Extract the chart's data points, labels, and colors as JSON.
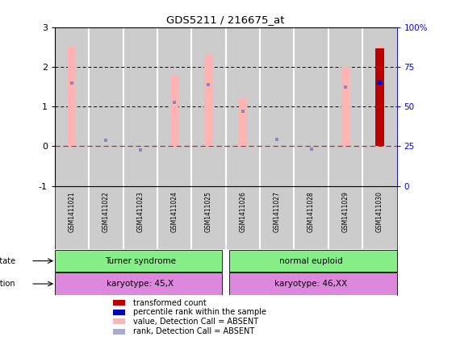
{
  "title": "GDS5211 / 216675_at",
  "samples": [
    "GSM1411021",
    "GSM1411022",
    "GSM1411023",
    "GSM1411024",
    "GSM1411025",
    "GSM1411026",
    "GSM1411027",
    "GSM1411028",
    "GSM1411029",
    "GSM1411030"
  ],
  "pink_bar_values": [
    2.5,
    0.0,
    0.0,
    1.8,
    2.3,
    1.2,
    0.0,
    0.0,
    2.0,
    2.5
  ],
  "blue_dot_values": [
    1.6,
    0.15,
    -0.1,
    1.1,
    1.55,
    0.88,
    0.18,
    -0.08,
    1.5,
    1.62
  ],
  "red_bar_values": [
    0.0,
    0.0,
    0.0,
    0.0,
    0.0,
    0.0,
    0.0,
    0.0,
    0.0,
    2.47
  ],
  "blue_square_value": 1.62,
  "blue_square_index": 9,
  "ylim": [
    -1,
    3
  ],
  "yticks": [
    -1,
    0,
    1,
    2,
    3
  ],
  "right_yticks_pct": [
    0,
    25,
    50,
    75,
    100
  ],
  "right_ytick_labels": [
    "0",
    "25",
    "50",
    "75",
    "100%"
  ],
  "hlines": [
    1.0,
    2.0
  ],
  "zero_line_color": "#cc2222",
  "disease_state_labels": [
    "Turner syndrome",
    "normal euploid"
  ],
  "disease_state_color": "#88ee88",
  "genotype_labels": [
    "karyotype: 45,X",
    "karyotype: 46,XX"
  ],
  "genotype_color": "#dd88dd",
  "background_color": "#ffffff",
  "col_bg_color": "#cccccc",
  "col_divider_color": "#ffffff",
  "pink_color": "#ffb3b3",
  "blue_rank_color": "#8888bb",
  "red_color": "#bb0000",
  "dark_blue_color": "#0000bb",
  "legend_items": [
    {
      "color": "#bb0000",
      "label": "transformed count"
    },
    {
      "color": "#0000bb",
      "label": "percentile rank within the sample"
    },
    {
      "color": "#ffb3b3",
      "label": "value, Detection Call = ABSENT"
    },
    {
      "color": "#aaaacc",
      "label": "rank, Detection Call = ABSENT"
    }
  ]
}
